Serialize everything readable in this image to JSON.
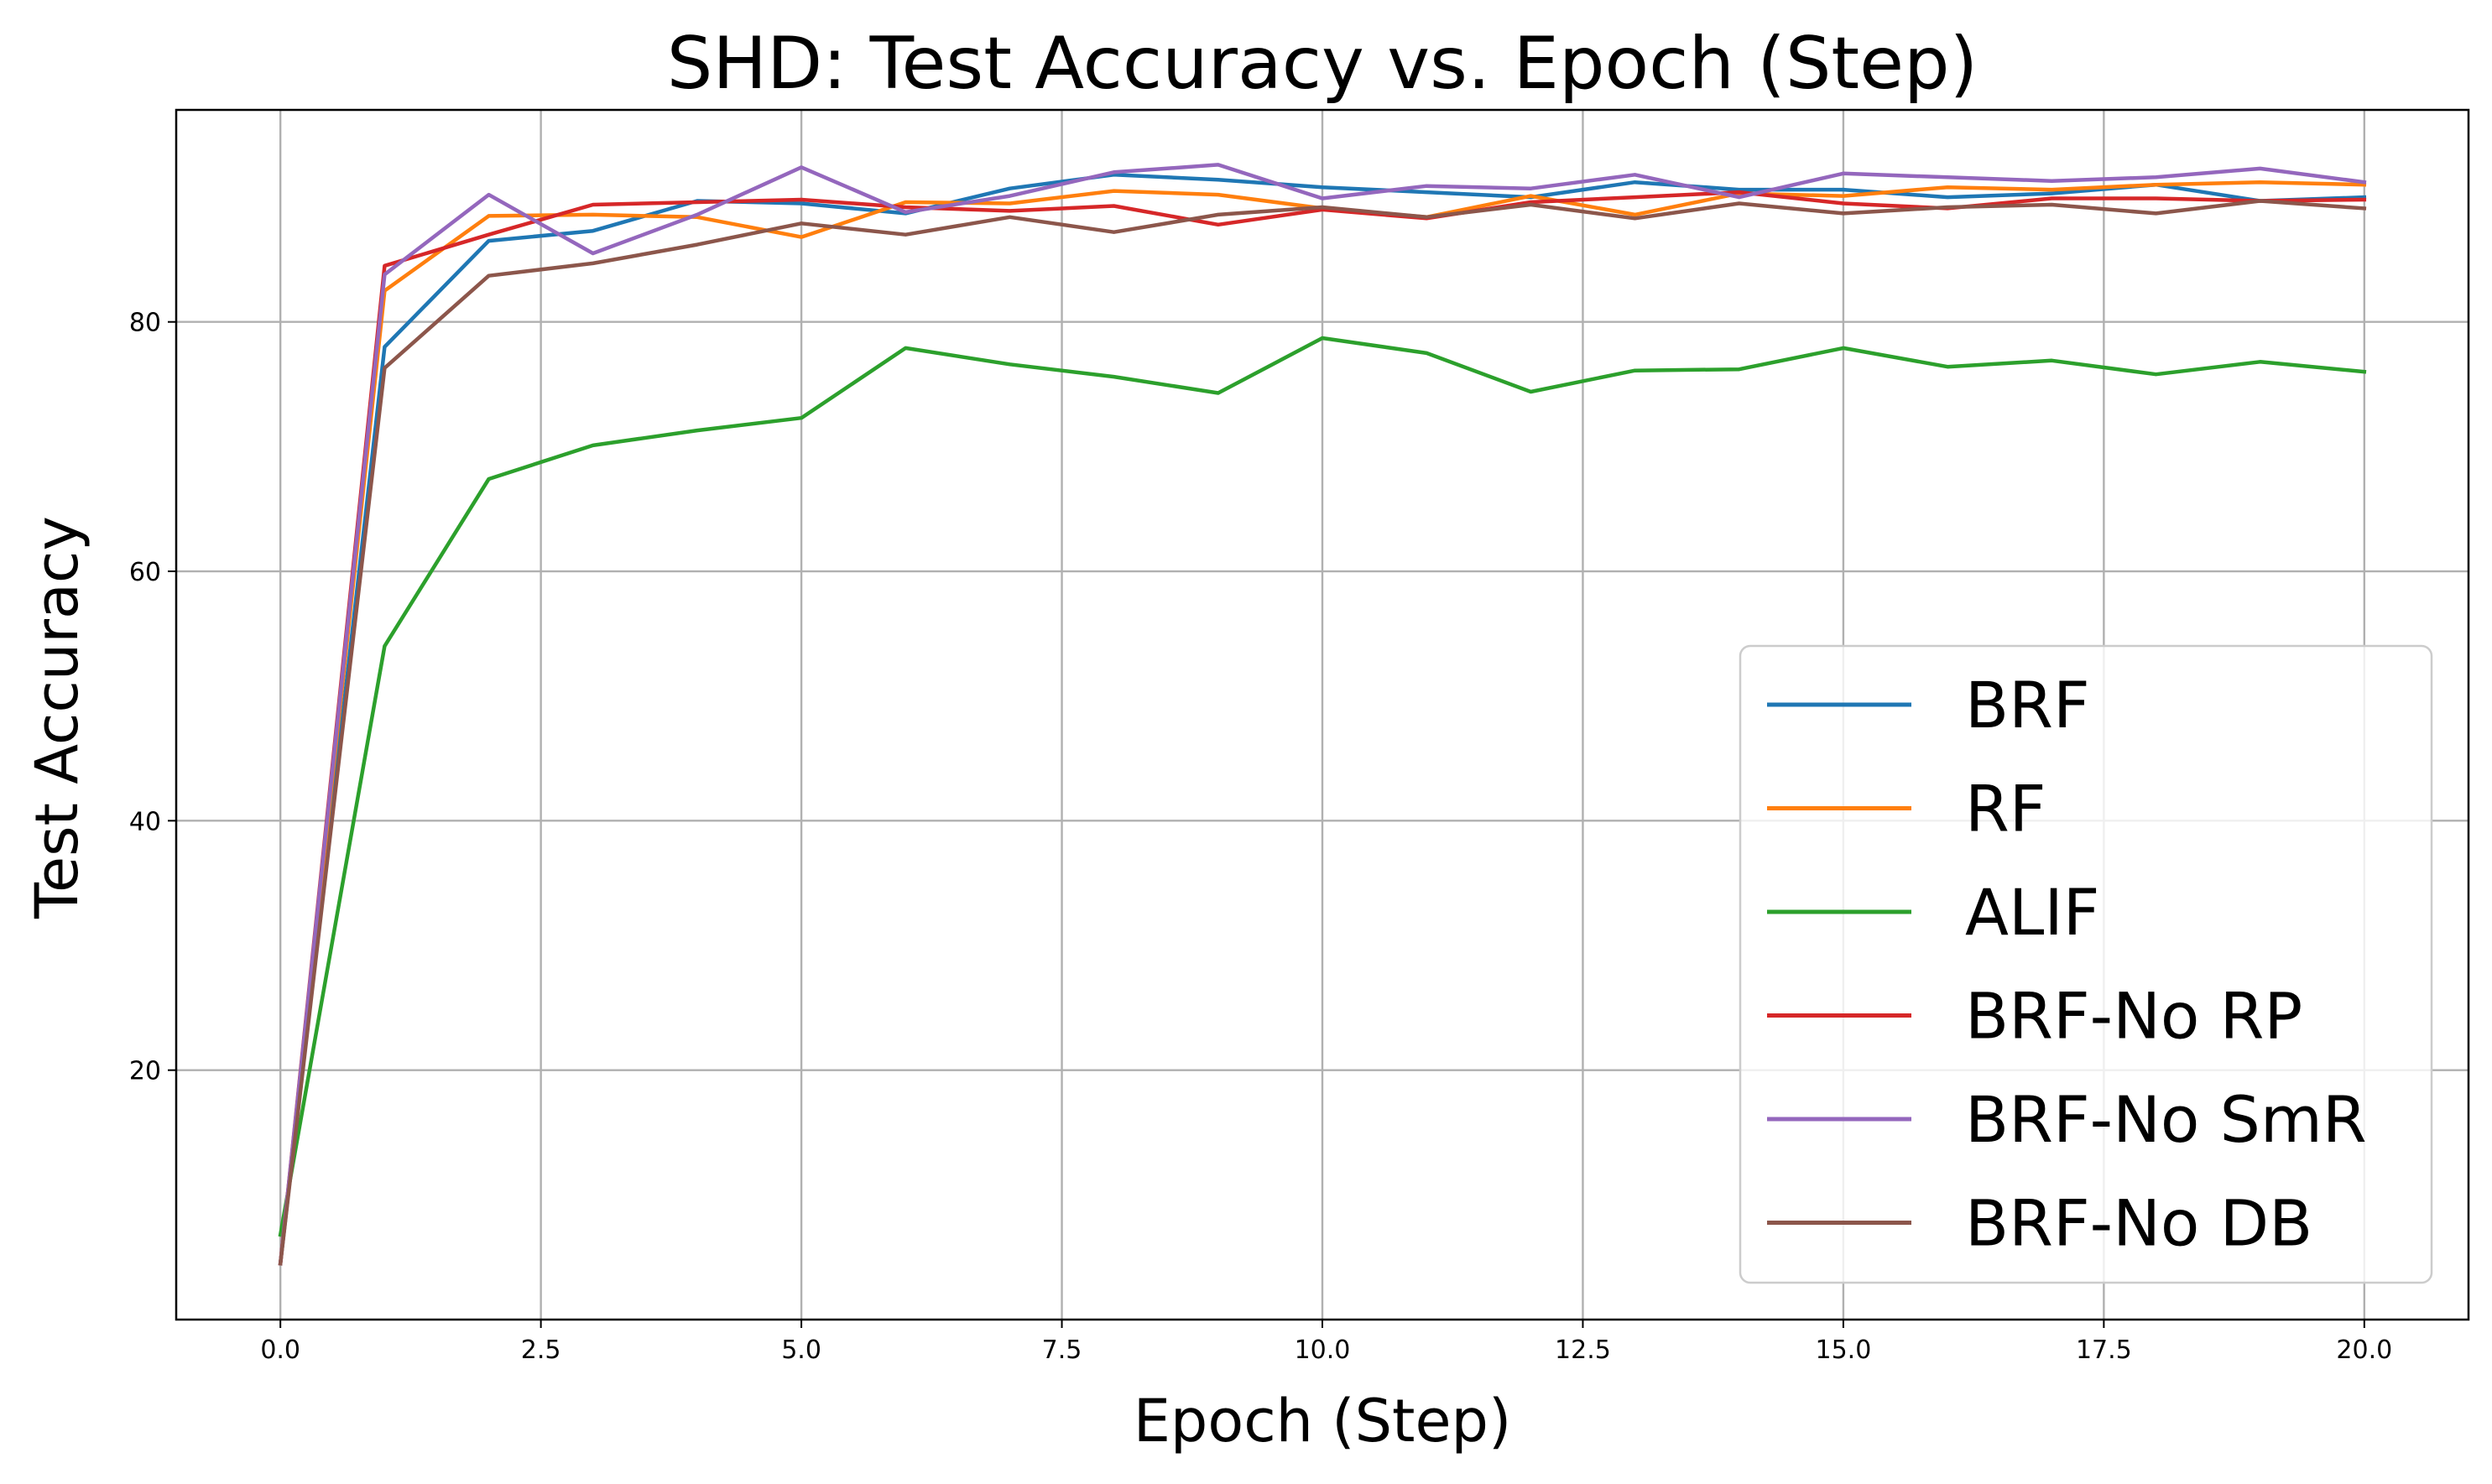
{
  "chart_data": {
    "type": "line",
    "title": "SHD: Test Accuracy vs. Epoch (Step)",
    "xlabel": "Epoch (Step)",
    "ylabel": "Test Accuracy",
    "xlim": [
      -1,
      21
    ],
    "ylim": [
      0,
      97
    ],
    "xticks": [
      0.0,
      2.5,
      5.0,
      7.5,
      10.0,
      12.5,
      15.0,
      17.5,
      20.0
    ],
    "xtick_labels": [
      "0.0",
      "2.5",
      "5.0",
      "7.5",
      "10.0",
      "12.5",
      "15.0",
      "17.5",
      "20.0"
    ],
    "yticks": [
      20,
      40,
      60,
      80
    ],
    "ytick_labels": [
      "20",
      "40",
      "60",
      "80"
    ],
    "grid": true,
    "legend_position": "lower-right",
    "x": [
      0,
      1,
      2,
      3,
      4,
      5,
      6,
      7,
      8,
      9,
      10,
      11,
      12,
      13,
      14,
      15,
      16,
      17,
      18,
      19,
      20
    ],
    "series": [
      {
        "name": "BRF",
        "color": "#1f77b4",
        "values": [
          4.5,
          78.0,
          86.5,
          87.3,
          89.7,
          89.5,
          88.7,
          90.7,
          91.8,
          91.4,
          90.8,
          90.4,
          90.0,
          91.2,
          90.6,
          90.6,
          90.0,
          90.3,
          91.0,
          89.7,
          90.0
        ]
      },
      {
        "name": "RF",
        "color": "#ff7f0e",
        "values": [
          4.5,
          82.5,
          88.5,
          88.6,
          88.4,
          86.8,
          89.6,
          89.5,
          90.5,
          90.2,
          89.1,
          88.4,
          90.1,
          88.6,
          90.3,
          90.1,
          90.8,
          90.6,
          91.0,
          91.2,
          91.0
        ]
      },
      {
        "name": "ALIF",
        "color": "#2ca02c",
        "values": [
          6.8,
          54.0,
          67.4,
          70.1,
          71.3,
          72.3,
          77.9,
          76.6,
          75.6,
          74.3,
          78.7,
          77.5,
          74.4,
          76.1,
          76.2,
          77.9,
          76.4,
          76.9,
          75.8,
          76.8,
          76.0
        ]
      },
      {
        "name": "BRF-No RP",
        "color": "#d62728",
        "values": [
          4.5,
          84.5,
          87.0,
          89.4,
          89.6,
          89.8,
          89.2,
          88.9,
          89.3,
          87.8,
          89.0,
          88.3,
          89.6,
          90.0,
          90.4,
          89.5,
          89.1,
          89.9,
          89.9,
          89.7,
          89.8
        ]
      },
      {
        "name": "BRF-No SmR",
        "color": "#9467bd",
        "values": [
          4.5,
          83.8,
          90.2,
          85.5,
          88.6,
          92.4,
          88.8,
          90.1,
          92.0,
          92.6,
          89.9,
          90.9,
          90.7,
          91.8,
          90.0,
          91.9,
          91.6,
          91.3,
          91.6,
          92.3,
          91.2
        ]
      },
      {
        "name": "BRF-No DB",
        "color": "#8c564b",
        "values": [
          4.5,
          76.3,
          83.7,
          84.7,
          86.2,
          87.9,
          87.0,
          88.4,
          87.2,
          88.6,
          89.2,
          88.4,
          89.4,
          88.3,
          89.5,
          88.7,
          89.2,
          89.4,
          88.7,
          89.7,
          89.1
        ]
      }
    ]
  }
}
